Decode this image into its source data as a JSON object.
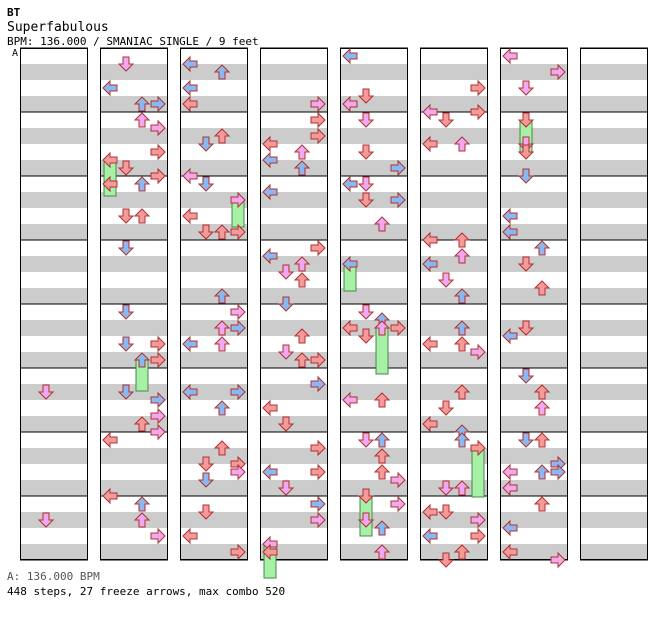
{
  "header": {
    "artist": "BT",
    "title": "Superfabulous",
    "info": "BPM: 136.000 / SMANIAC SINGLE / 9 feet"
  },
  "chart": {
    "bpm_marker": "A",
    "num_columns": 8,
    "measures_per_column": 8,
    "colors": {
      "quarter": "#f49a9a",
      "eighth": "#8ab8f0",
      "sixteenth": "#f0a8f0",
      "freeze": "#a8f0a8",
      "stripe": "#cccccc"
    }
  },
  "footer": {
    "bpm_line": "A: 136.000 BPM",
    "stats": "448 steps, 27 freeze arrows, max combo 520"
  }
}
